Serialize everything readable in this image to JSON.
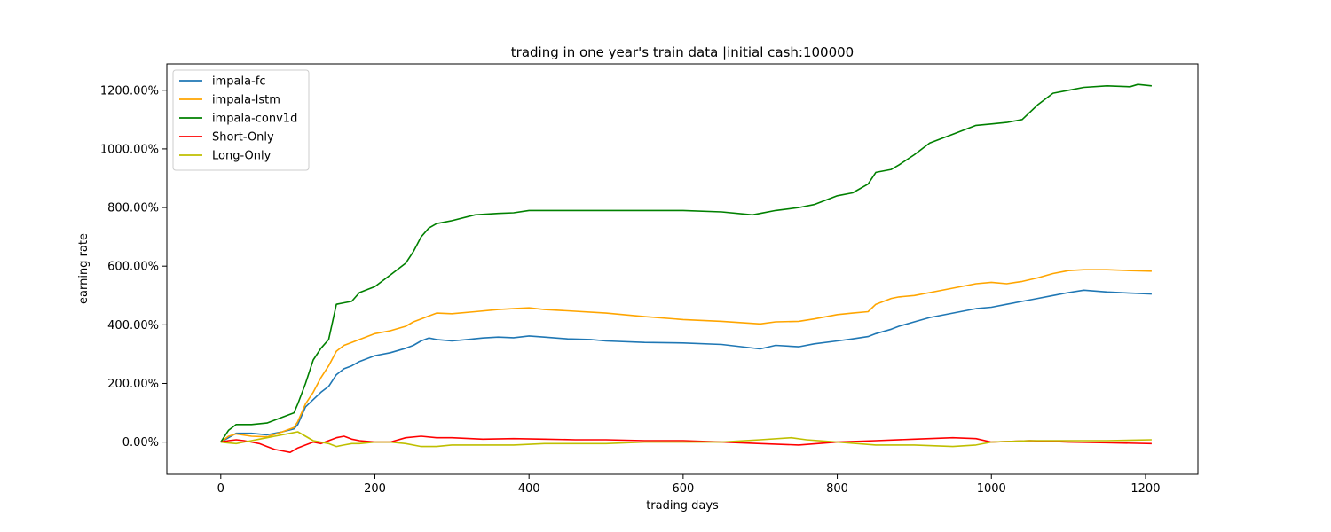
{
  "chart_data": {
    "type": "line",
    "title": "trading in one year's train data |initial cash:100000",
    "xlabel": "trading days",
    "ylabel": "earning rate",
    "xlim": [
      -70,
      1268
    ],
    "ylim": [
      -110,
      1290
    ],
    "xticks": [
      0,
      200,
      400,
      600,
      800,
      1000,
      1200
    ],
    "yticks": [
      0,
      200,
      400,
      600,
      800,
      1000,
      1200
    ],
    "ytick_labels": [
      "0.00%",
      "200.00%",
      "400.00%",
      "600.00%",
      "800.00%",
      "1000.00%",
      "1200.00%"
    ],
    "grid": false,
    "legend_position": "top-left",
    "series": [
      {
        "name": "impala-fc",
        "color": "#1f77b4",
        "x": [
          0,
          10,
          20,
          40,
          60,
          80,
          95,
          100,
          110,
          120,
          130,
          140,
          150,
          160,
          170,
          180,
          200,
          220,
          240,
          250,
          260,
          270,
          280,
          300,
          320,
          340,
          360,
          380,
          400,
          420,
          450,
          480,
          500,
          550,
          600,
          650,
          700,
          720,
          750,
          770,
          800,
          820,
          840,
          850,
          870,
          880,
          900,
          920,
          950,
          980,
          1000,
          1020,
          1040,
          1060,
          1080,
          1100,
          1120,
          1150,
          1180,
          1208
        ],
        "y": [
          0,
          15,
          30,
          30,
          25,
          35,
          45,
          60,
          120,
          145,
          170,
          190,
          230,
          250,
          260,
          275,
          295,
          305,
          320,
          330,
          345,
          355,
          350,
          345,
          350,
          355,
          358,
          356,
          362,
          358,
          352,
          350,
          345,
          340,
          338,
          333,
          318,
          330,
          325,
          335,
          345,
          352,
          360,
          370,
          385,
          395,
          410,
          425,
          440,
          455,
          460,
          470,
          480,
          490,
          500,
          510,
          518,
          512,
          508,
          505
        ]
      },
      {
        "name": "impala-lstm",
        "color": "#ffa500",
        "x": [
          0,
          10,
          20,
          40,
          60,
          80,
          95,
          100,
          110,
          120,
          130,
          140,
          150,
          160,
          170,
          180,
          200,
          220,
          240,
          250,
          260,
          270,
          280,
          300,
          330,
          360,
          380,
          400,
          420,
          450,
          500,
          550,
          600,
          650,
          700,
          720,
          750,
          770,
          800,
          820,
          840,
          850,
          870,
          880,
          900,
          920,
          950,
          980,
          1000,
          1020,
          1040,
          1060,
          1080,
          1100,
          1120,
          1150,
          1180,
          1208
        ],
        "y": [
          0,
          20,
          28,
          20,
          18,
          35,
          50,
          70,
          130,
          170,
          220,
          260,
          310,
          330,
          340,
          350,
          370,
          380,
          395,
          410,
          420,
          430,
          440,
          438,
          445,
          452,
          455,
          458,
          452,
          448,
          440,
          428,
          418,
          412,
          403,
          410,
          412,
          420,
          435,
          440,
          445,
          470,
          490,
          495,
          500,
          510,
          525,
          540,
          545,
          540,
          548,
          560,
          575,
          585,
          588,
          588,
          585,
          583
        ]
      },
      {
        "name": "impala-conv1d",
        "color": "#008000",
        "x": [
          0,
          10,
          20,
          40,
          60,
          80,
          95,
          100,
          110,
          120,
          130,
          140,
          150,
          160,
          170,
          180,
          200,
          220,
          240,
          250,
          260,
          270,
          280,
          300,
          330,
          360,
          380,
          400,
          420,
          450,
          500,
          550,
          600,
          650,
          690,
          700,
          720,
          750,
          770,
          800,
          820,
          840,
          850,
          870,
          880,
          900,
          920,
          950,
          980,
          1000,
          1020,
          1040,
          1060,
          1080,
          1100,
          1120,
          1150,
          1180,
          1190,
          1208
        ],
        "y": [
          0,
          40,
          60,
          60,
          65,
          85,
          100,
          130,
          200,
          280,
          320,
          350,
          470,
          475,
          480,
          510,
          530,
          570,
          610,
          650,
          700,
          730,
          745,
          755,
          775,
          780,
          782,
          790,
          790,
          790,
          790,
          790,
          790,
          785,
          775,
          780,
          790,
          800,
          810,
          840,
          850,
          880,
          920,
          930,
          945,
          980,
          1020,
          1050,
          1080,
          1085,
          1090,
          1100,
          1150,
          1190,
          1200,
          1210,
          1215,
          1212,
          1220,
          1215
        ]
      },
      {
        "name": "Short-Only",
        "color": "#ff0000",
        "x": [
          0,
          10,
          20,
          30,
          40,
          50,
          60,
          70,
          80,
          90,
          100,
          110,
          120,
          130,
          140,
          150,
          160,
          170,
          180,
          200,
          220,
          240,
          260,
          280,
          300,
          340,
          380,
          420,
          460,
          500,
          550,
          600,
          650,
          700,
          750,
          800,
          850,
          900,
          950,
          980,
          1000,
          1050,
          1100,
          1150,
          1208
        ],
        "y": [
          0,
          5,
          8,
          5,
          0,
          -5,
          -15,
          -25,
          -30,
          -35,
          -20,
          -10,
          0,
          -5,
          5,
          15,
          20,
          10,
          5,
          0,
          0,
          15,
          20,
          15,
          15,
          10,
          12,
          10,
          8,
          8,
          5,
          5,
          0,
          -5,
          -10,
          0,
          5,
          10,
          15,
          12,
          0,
          5,
          0,
          -2,
          -5
        ]
      },
      {
        "name": "Long-Only",
        "color": "#bfbf00",
        "x": [
          0,
          10,
          20,
          30,
          40,
          50,
          60,
          70,
          80,
          90,
          100,
          110,
          120,
          130,
          140,
          150,
          160,
          170,
          180,
          200,
          220,
          240,
          260,
          280,
          300,
          340,
          380,
          420,
          460,
          500,
          550,
          600,
          650,
          700,
          740,
          760,
          800,
          850,
          900,
          950,
          980,
          1000,
          1050,
          1100,
          1150,
          1208
        ],
        "y": [
          0,
          -3,
          -5,
          0,
          5,
          10,
          15,
          20,
          25,
          30,
          35,
          20,
          5,
          0,
          -5,
          -15,
          -10,
          -5,
          -5,
          0,
          0,
          -5,
          -15,
          -15,
          -10,
          -10,
          -10,
          -5,
          -5,
          -5,
          0,
          0,
          0,
          8,
          15,
          8,
          0,
          -10,
          -10,
          -15,
          -10,
          0,
          5,
          5,
          5,
          8
        ]
      }
    ]
  }
}
